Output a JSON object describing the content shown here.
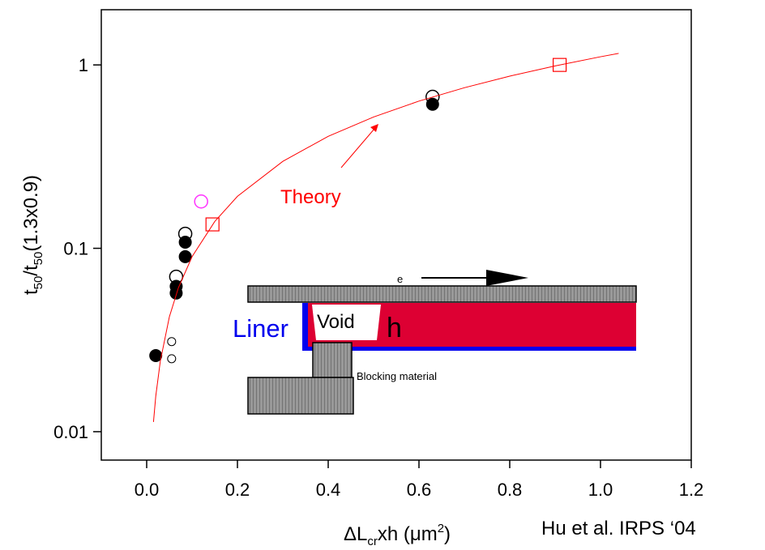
{
  "chart_data": {
    "type": "scatter",
    "y_label_parts": [
      "t",
      "50",
      "/t",
      "50",
      "(1.3x0.9)"
    ],
    "x_label_parts": [
      "ΔL",
      "cr",
      "xh  (μm",
      "2",
      ")"
    ],
    "xlim": [
      -0.1,
      1.2
    ],
    "xticks": [
      {
        "value": 0,
        "label": "0.0"
      },
      0.2,
      0.4,
      0.6,
      0.8,
      {
        "value": 1,
        "label": "1.0"
      },
      1.2
    ],
    "ylim": [
      0.007,
      2
    ],
    "yticks": [
      0.01,
      0.1,
      1
    ],
    "log_y": true,
    "series": [
      {
        "marker": "filled-circle",
        "color": "#000000",
        "x": [
          0.02,
          0.065,
          0.065,
          0.085,
          0.085,
          0.63
        ],
        "values": [
          0.026,
          0.057,
          0.062,
          0.09,
          0.108,
          0.61
        ]
      },
      {
        "marker": "open-circle",
        "color": "#000000",
        "x": [
          0.065,
          0.085,
          0.63
        ],
        "values": [
          0.07,
          0.12,
          0.67
        ]
      },
      {
        "marker": "small-open-circle",
        "color": "#000000",
        "x": [
          0.055,
          0.055
        ],
        "values": [
          0.031,
          0.025
        ]
      },
      {
        "marker": "open-circle",
        "color": "#ff33ff",
        "x": [
          0.12
        ],
        "values": [
          0.18
        ]
      },
      {
        "marker": "open-square",
        "color": "#ff0000",
        "x": [
          0.145,
          0.91
        ],
        "values": [
          0.135,
          1.0
        ]
      },
      {
        "marker": "line",
        "color": "#ff0000",
        "x": [
          0.015,
          0.02,
          0.03,
          0.05,
          0.07,
          0.1,
          0.15,
          0.2,
          0.3,
          0.4,
          0.5,
          0.6,
          0.7,
          0.8,
          0.9,
          1.0,
          1.04
        ],
        "values": [
          0.0113,
          0.0156,
          0.0242,
          0.0423,
          0.061,
          0.09,
          0.14,
          0.192,
          0.298,
          0.408,
          0.52,
          0.635,
          0.751,
          0.869,
          0.988,
          1.108,
          1.156
        ]
      }
    ],
    "annotation": "Theory",
    "citation": "Hu et al. IRPS ‘04",
    "inset": {
      "electron": "e",
      "liner": "Liner",
      "void": "Void",
      "height": "h",
      "blocking": "Blocking material"
    }
  }
}
